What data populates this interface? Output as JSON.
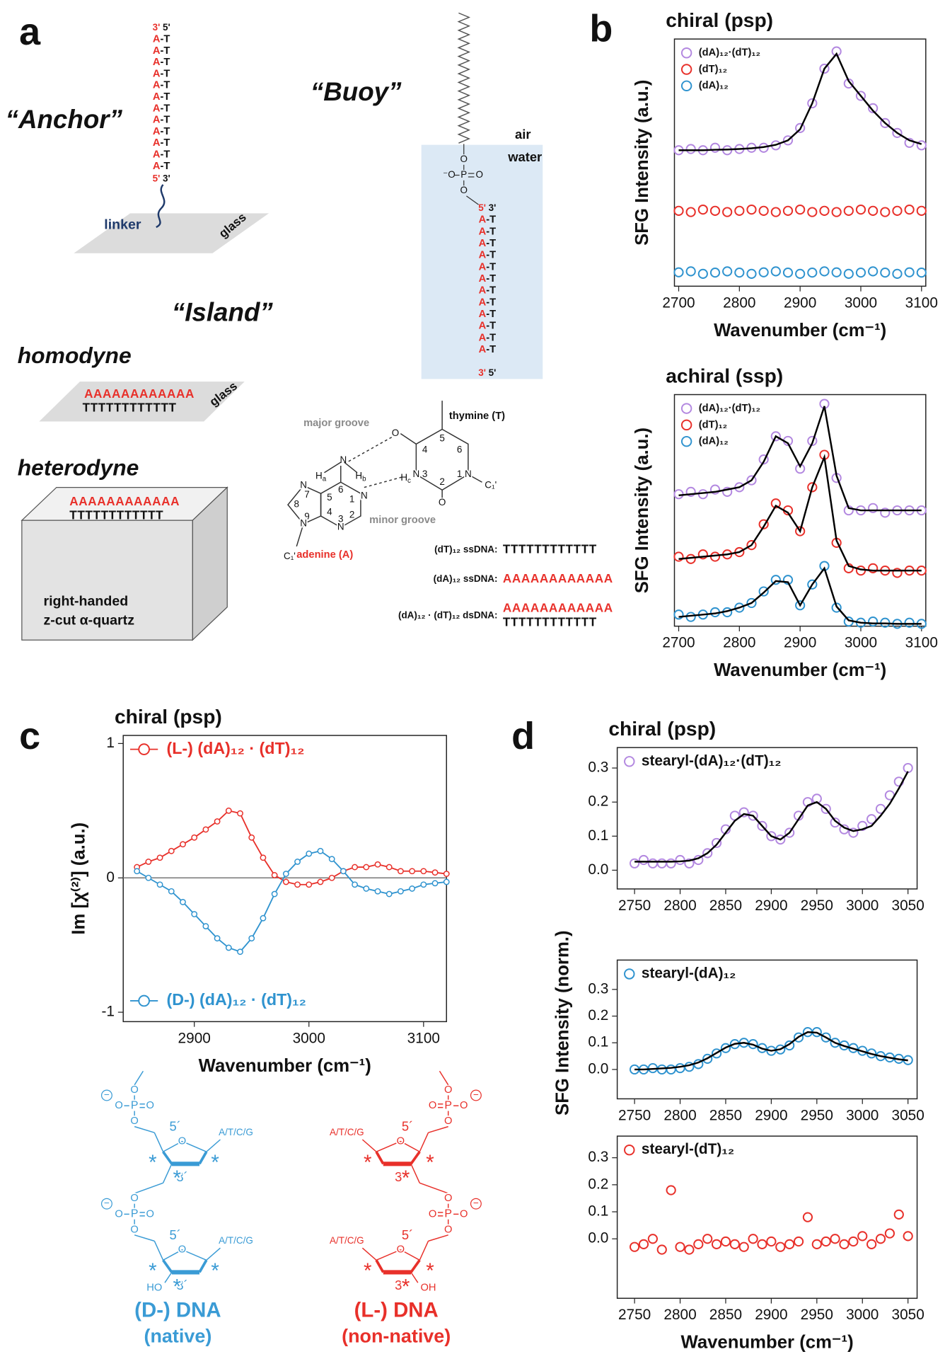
{
  "panel_labels": [
    "a",
    "b",
    "c",
    "d"
  ],
  "panel_a": {
    "anchor": {
      "title": "“Anchor”",
      "top": [
        "3'",
        "5'"
      ],
      "pairs": [
        [
          "A",
          "-T"
        ],
        [
          "A",
          "-T"
        ],
        [
          "A",
          "-T"
        ],
        [
          "A",
          "-T"
        ],
        [
          "A",
          "-T"
        ],
        [
          "A",
          "-T"
        ],
        [
          "A",
          "-T"
        ],
        [
          "A",
          "-T"
        ],
        [
          "A",
          "-T"
        ],
        [
          "A",
          "-T"
        ],
        [
          "A",
          "-T"
        ],
        [
          "A",
          "-T"
        ]
      ],
      "bottom": [
        "5'",
        "3'"
      ],
      "linker": "linker",
      "surface": "glass"
    },
    "buoy": {
      "title": "“Buoy”",
      "air": "air",
      "water": "water",
      "phosphate": {
        "o": "O",
        "p": "P",
        "anion": "⁻O"
      },
      "top": [
        "5'",
        "3'"
      ],
      "pairs": [
        [
          "A",
          "-T"
        ],
        [
          "A",
          "-T"
        ],
        [
          "A",
          "-T"
        ],
        [
          "A",
          "-T"
        ],
        [
          "A",
          "-T"
        ],
        [
          "A",
          "-T"
        ],
        [
          "A",
          "-T"
        ],
        [
          "A",
          "-T"
        ],
        [
          "A",
          "-T"
        ],
        [
          "A",
          "-T"
        ],
        [
          "A",
          "-T"
        ],
        [
          "A",
          "-T"
        ]
      ],
      "bottom": [
        "3'",
        "5'"
      ]
    },
    "island": {
      "title": "“Island”",
      "homodyne": "homodyne",
      "heterodyne": "heterodyne",
      "strand_a": "AAAAAAAAAAAA",
      "strand_t": "TTTTTTTTTTTT",
      "surface": "glass",
      "substrate": [
        "right-handed",
        "z-cut α-quartz"
      ]
    },
    "base_pair": {
      "major": "major groove",
      "minor": "minor groove",
      "thymine": "thymine (T)",
      "adenine": "adenine (A)",
      "t_numbers": [
        "1",
        "2",
        "3",
        "4",
        "5",
        "6"
      ],
      "a_numbers": [
        "1",
        "2",
        "3",
        "4",
        "5",
        "6",
        "7",
        "8",
        "9"
      ],
      "atoms": {
        "o": "O",
        "n": "N",
        "h": "H",
        "h_sub": [
          "a",
          "b",
          "c"
        ],
        "c1": "C₁'"
      }
    },
    "sequences": [
      {
        "label": "(dT)₁₂ ssDNA:",
        "lines": [
          "TTTTTTTTTTTT"
        ],
        "colors": [
          "#111111"
        ]
      },
      {
        "label": "(dA)₁₂ ssDNA:",
        "lines": [
          "AAAAAAAAAAAA"
        ],
        "colors": [
          "#e8302a"
        ]
      },
      {
        "label": "(dA)₁₂ · (dT)₁₂ dsDNA:",
        "lines": [
          "AAAAAAAAAAAA",
          "TTTTTTTTTTTT"
        ],
        "colors": [
          "#e8302a",
          "#111111"
        ]
      }
    ]
  },
  "chart_data": [
    {
      "type": "scatter",
      "title": "chiral (psp)",
      "xlabel": "Wavenumber (cm⁻¹)",
      "ylabel": "SFG Intensity (a.u.)",
      "x": [
        2700,
        2720,
        2740,
        2760,
        2780,
        2800,
        2820,
        2840,
        2860,
        2880,
        2900,
        2920,
        2940,
        2960,
        2980,
        3000,
        3020,
        3040,
        3060,
        3080,
        3100
      ],
      "xlim": [
        2693,
        3107
      ],
      "xticks": [
        2700,
        2800,
        2900,
        3000,
        3100
      ],
      "ylim": [
        0,
        1
      ],
      "legend": "upper left",
      "series": [
        {
          "name": "(dA)₁₂·(dT)₁₂",
          "color": "#b388e0",
          "values": [
            0.55,
            0.555,
            0.55,
            0.56,
            0.55,
            0.555,
            0.56,
            0.56,
            0.57,
            0.59,
            0.64,
            0.74,
            0.88,
            0.95,
            0.82,
            0.77,
            0.72,
            0.66,
            0.62,
            0.58,
            0.57
          ]
        },
        {
          "name": "(dT)₁₂",
          "color": "#e8302a",
          "values": [
            0.305,
            0.3,
            0.31,
            0.305,
            0.3,
            0.305,
            0.31,
            0.305,
            0.3,
            0.305,
            0.31,
            0.3,
            0.305,
            0.3,
            0.305,
            0.31,
            0.305,
            0.3,
            0.305,
            0.31,
            0.305
          ]
        },
        {
          "name": "(dA)₁₂",
          "color": "#2f93cf",
          "values": [
            0.056,
            0.06,
            0.05,
            0.055,
            0.06,
            0.055,
            0.05,
            0.056,
            0.06,
            0.055,
            0.05,
            0.055,
            0.06,
            0.056,
            0.05,
            0.055,
            0.06,
            0.055,
            0.05,
            0.056,
            0.055
          ]
        }
      ],
      "fits": [
        {
          "color": "#000000",
          "values": [
            0.55,
            0.55,
            0.55,
            0.552,
            0.553,
            0.555,
            0.558,
            0.563,
            0.572,
            0.59,
            0.635,
            0.74,
            0.88,
            0.94,
            0.83,
            0.77,
            0.71,
            0.66,
            0.62,
            0.59,
            0.575
          ]
        }
      ]
    },
    {
      "type": "scatter",
      "title": "achiral (ssp)",
      "xlabel": "Wavenumber (cm⁻¹)",
      "ylabel": "SFG Intensity (a.u.)",
      "x": [
        2700,
        2720,
        2740,
        2760,
        2780,
        2800,
        2820,
        2840,
        2860,
        2880,
        2900,
        2920,
        2940,
        2960,
        2980,
        3000,
        3020,
        3040,
        3060,
        3080,
        3100
      ],
      "xlim": [
        2693,
        3107
      ],
      "xticks": [
        2700,
        2800,
        2900,
        3000,
        3100
      ],
      "ylim": [
        0,
        1
      ],
      "legend": "upper left",
      "series": [
        {
          "name": "(dA)₁₂·(dT)₁₂",
          "color": "#b388e0",
          "values": [
            0.57,
            0.58,
            0.57,
            0.59,
            0.58,
            0.6,
            0.63,
            0.72,
            0.82,
            0.8,
            0.68,
            0.8,
            0.96,
            0.64,
            0.5,
            0.5,
            0.51,
            0.49,
            0.5,
            0.5,
            0.5
          ]
        },
        {
          "name": "(dT)₁₂",
          "color": "#e8302a",
          "values": [
            0.3,
            0.29,
            0.31,
            0.3,
            0.31,
            0.32,
            0.35,
            0.44,
            0.53,
            0.5,
            0.41,
            0.6,
            0.74,
            0.36,
            0.25,
            0.24,
            0.25,
            0.24,
            0.23,
            0.24,
            0.24
          ]
        },
        {
          "name": "(dA)₁₂",
          "color": "#2f93cf",
          "values": [
            0.05,
            0.04,
            0.05,
            0.06,
            0.06,
            0.08,
            0.1,
            0.15,
            0.2,
            0.2,
            0.09,
            0.18,
            0.26,
            0.08,
            0.02,
            0.015,
            0.02,
            0.015,
            0.01,
            0.015,
            0.01
          ]
        }
      ],
      "fits": [
        {
          "color": "#000000",
          "values": [
            0.565,
            0.57,
            0.575,
            0.58,
            0.59,
            0.6,
            0.63,
            0.71,
            0.82,
            0.79,
            0.69,
            0.79,
            0.95,
            0.65,
            0.51,
            0.5,
            0.5,
            0.5,
            0.5,
            0.5,
            0.5
          ]
        },
        {
          "color": "#000000",
          "values": [
            0.29,
            0.295,
            0.3,
            0.305,
            0.31,
            0.32,
            0.35,
            0.43,
            0.52,
            0.49,
            0.41,
            0.6,
            0.73,
            0.37,
            0.26,
            0.245,
            0.24,
            0.24,
            0.24,
            0.24,
            0.24
          ]
        },
        {
          "color": "#000000",
          "values": [
            0.04,
            0.045,
            0.05,
            0.055,
            0.065,
            0.08,
            0.1,
            0.145,
            0.195,
            0.19,
            0.09,
            0.18,
            0.25,
            0.085,
            0.025,
            0.015,
            0.012,
            0.012,
            0.01,
            0.01,
            0.01
          ]
        }
      ]
    },
    {
      "type": "line",
      "title": "chiral (psp)",
      "xlabel": "Wavenumber (cm⁻¹)",
      "ylabel": "Im [χ⁽²⁾] (a.u.)",
      "x": [
        2850,
        2860,
        2870,
        2880,
        2890,
        2900,
        2910,
        2920,
        2930,
        2940,
        2950,
        2960,
        2970,
        2980,
        2990,
        3000,
        3010,
        3020,
        3030,
        3040,
        3050,
        3060,
        3070,
        3080,
        3090,
        3100,
        3110,
        3120
      ],
      "xlim": [
        2838,
        3120
      ],
      "xticks": [
        2900,
        3000,
        3100
      ],
      "ylim": [
        -1.07,
        1.06
      ],
      "yticks": [
        -1,
        0,
        1
      ],
      "zero_line": true,
      "series": [
        {
          "name": "(L-) (dA)₁₂ · (dT)₁₂",
          "color": "#e8302a",
          "legend": "upper left",
          "values": [
            0.08,
            0.12,
            0.15,
            0.2,
            0.25,
            0.3,
            0.36,
            0.42,
            0.5,
            0.48,
            0.3,
            0.15,
            0.02,
            -0.03,
            -0.05,
            -0.05,
            -0.03,
            0.0,
            0.05,
            0.08,
            0.08,
            0.1,
            0.08,
            0.05,
            0.05,
            0.05,
            0.04,
            0.03
          ]
        },
        {
          "name": "(D-) (dA)₁₂ · (dT)₁₂",
          "color": "#2f93cf",
          "legend": "lower left",
          "values": [
            0.05,
            0.0,
            -0.05,
            -0.1,
            -0.18,
            -0.27,
            -0.36,
            -0.45,
            -0.52,
            -0.55,
            -0.45,
            -0.3,
            -0.12,
            0.03,
            0.12,
            0.18,
            0.2,
            0.14,
            0.05,
            -0.05,
            -0.08,
            -0.1,
            -0.12,
            -0.1,
            -0.08,
            -0.05,
            -0.04,
            -0.03
          ]
        }
      ]
    },
    {
      "type": "scatter",
      "title": "chiral (psp)",
      "x": [
        2750,
        2760,
        2770,
        2780,
        2790,
        2800,
        2810,
        2820,
        2830,
        2840,
        2850,
        2860,
        2870,
        2880,
        2890,
        2900,
        2910,
        2920,
        2930,
        2940,
        2950,
        2960,
        2970,
        2980,
        2990,
        3000,
        3010,
        3020,
        3030,
        3040,
        3050
      ],
      "xlim": [
        2731,
        3060
      ],
      "xticks": [
        2750,
        2800,
        2850,
        2900,
        2950,
        3000,
        3050
      ],
      "ylim": [
        -0.055,
        0.36
      ],
      "yticks": [
        {
          "value": 0,
          "label": "0.0"
        },
        0.1,
        0.2,
        0.3
      ],
      "legend": "upper left",
      "series": [
        {
          "name": "stearyl-(dA)₁₂·(dT)₁₂",
          "color": "#b388e0",
          "values": [
            0.02,
            0.03,
            0.02,
            0.02,
            0.02,
            0.03,
            0.02,
            0.03,
            0.05,
            0.08,
            0.12,
            0.16,
            0.17,
            0.16,
            0.13,
            0.1,
            0.09,
            0.11,
            0.16,
            0.2,
            0.21,
            0.18,
            0.14,
            0.12,
            0.11,
            0.13,
            0.15,
            0.18,
            0.22,
            0.26,
            0.3
          ]
        }
      ],
      "fits": [
        {
          "color": "#000000",
          "values": [
            0.025,
            0.025,
            0.025,
            0.025,
            0.025,
            0.026,
            0.028,
            0.035,
            0.05,
            0.075,
            0.11,
            0.145,
            0.165,
            0.16,
            0.13,
            0.1,
            0.09,
            0.11,
            0.15,
            0.19,
            0.2,
            0.18,
            0.145,
            0.125,
            0.115,
            0.12,
            0.13,
            0.16,
            0.195,
            0.24,
            0.29
          ]
        }
      ]
    },
    {
      "type": "scatter",
      "ylabel": "SFG Intensity (norm.)",
      "x": [
        2750,
        2760,
        2770,
        2780,
        2790,
        2800,
        2810,
        2820,
        2830,
        2840,
        2850,
        2860,
        2870,
        2880,
        2890,
        2900,
        2910,
        2920,
        2930,
        2940,
        2950,
        2960,
        2970,
        2980,
        2990,
        3000,
        3010,
        3020,
        3030,
        3040,
        3050
      ],
      "xlim": [
        2731,
        3060
      ],
      "xticks": [
        2750,
        2800,
        2850,
        2900,
        2950,
        3000,
        3050
      ],
      "ylim": [
        -0.11,
        0.41
      ],
      "yticks": [
        {
          "value": 0,
          "label": "0.0"
        },
        0.1,
        0.2,
        0.3
      ],
      "legend": "upper left",
      "series": [
        {
          "name": "stearyl-(dA)₁₂",
          "color": "#2f93cf",
          "values": [
            0.0,
            0.0,
            0.005,
            0.0,
            0.0,
            0.005,
            0.01,
            0.02,
            0.04,
            0.06,
            0.08,
            0.095,
            0.1,
            0.095,
            0.08,
            0.07,
            0.075,
            0.09,
            0.12,
            0.14,
            0.14,
            0.12,
            0.1,
            0.09,
            0.08,
            0.07,
            0.06,
            0.05,
            0.045,
            0.04,
            0.035
          ]
        }
      ],
      "fits": [
        {
          "color": "#000000",
          "values": [
            0,
            0,
            0.002,
            0.004,
            0.006,
            0.01,
            0.016,
            0.026,
            0.042,
            0.062,
            0.082,
            0.096,
            0.1,
            0.093,
            0.078,
            0.07,
            0.076,
            0.095,
            0.122,
            0.14,
            0.138,
            0.12,
            0.1,
            0.088,
            0.078,
            0.068,
            0.058,
            0.05,
            0.044,
            0.038,
            0.034
          ]
        }
      ]
    },
    {
      "type": "scatter",
      "xlabel": "Wavenumber (cm⁻¹)",
      "x": [
        2750,
        2760,
        2770,
        2780,
        2790,
        2800,
        2810,
        2820,
        2830,
        2840,
        2850,
        2860,
        2870,
        2880,
        2890,
        2900,
        2910,
        2920,
        2930,
        2940,
        2950,
        2960,
        2970,
        2980,
        2990,
        3000,
        3010,
        3020,
        3030,
        3040,
        3050
      ],
      "xlim": [
        2731,
        3060
      ],
      "xticks": [
        2750,
        2800,
        2850,
        2900,
        2950,
        3000,
        3050
      ],
      "ylim": [
        -0.22,
        0.38
      ],
      "yticks": [
        {
          "value": 0,
          "label": "0.0"
        },
        0.1,
        0.2,
        0.3
      ],
      "legend": "upper left",
      "series": [
        {
          "name": "stearyl-(dT)₁₂",
          "color": "#e8302a",
          "values": [
            -0.03,
            -0.02,
            0.0,
            -0.04,
            0.18,
            -0.03,
            -0.04,
            -0.02,
            0.0,
            -0.02,
            -0.01,
            -0.02,
            -0.03,
            0.0,
            -0.02,
            -0.01,
            -0.03,
            -0.02,
            -0.01,
            0.08,
            -0.02,
            -0.01,
            0.0,
            -0.02,
            -0.01,
            0.01,
            -0.02,
            0.0,
            0.02,
            0.09,
            0.01
          ]
        }
      ]
    }
  ],
  "panel_c_structures": [
    {
      "name": "(D-) DNA",
      "note": "(native)",
      "color": "#3a9bd5",
      "end": "HO",
      "atoms": {
        "o": "O",
        "p": "P",
        "minus": "−"
      },
      "units": [
        {
          "five": "5´",
          "base": "A/T/C/G",
          "three": "3´",
          "stars": [
            "*",
            "*",
            "*"
          ]
        },
        {
          "five": "5´",
          "base": "A/T/C/G",
          "three": "3´",
          "stars": [
            "*",
            "*",
            "*"
          ]
        }
      ]
    },
    {
      "name": "(L-) DNA",
      "note": "(non-native)",
      "color": "#e8302a",
      "end": "OH",
      "atoms": {
        "o": "O",
        "p": "P",
        "minus": "−"
      },
      "units": [
        {
          "five": "5´",
          "base": "A/T/C/G",
          "three": "3´",
          "stars": [
            "*",
            "*",
            "*"
          ]
        },
        {
          "five": "5´",
          "base": "A/T/C/G",
          "three": "3´",
          "stars": [
            "*",
            "*",
            "*"
          ]
        }
      ]
    }
  ]
}
